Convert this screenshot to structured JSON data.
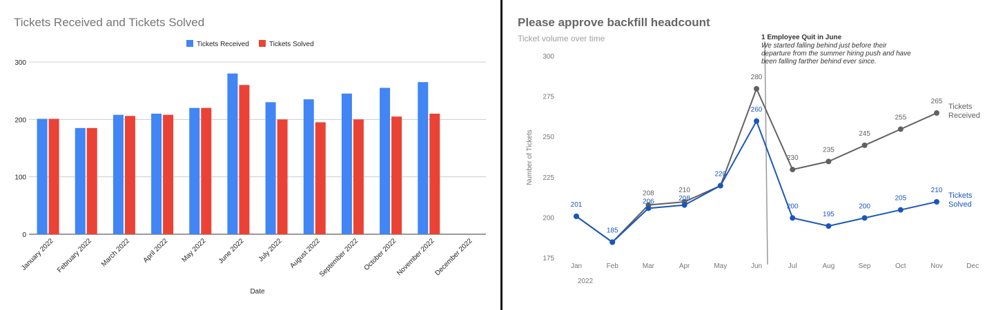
{
  "chart_data": [
    {
      "type": "bar",
      "title": "Tickets Received and Tickets Solved",
      "xlabel": "Date",
      "ylabel": "",
      "ylim": [
        0,
        300
      ],
      "yticks": [
        0,
        100,
        200,
        300
      ],
      "grid": true,
      "legend_position": "top",
      "categories": [
        "January 2022",
        "February 2022",
        "March 2022",
        "April 2022",
        "May 2022",
        "June 2022",
        "July 2022",
        "August 2022",
        "September 2022",
        "October 2022",
        "November 2022",
        "December 2022"
      ],
      "series": [
        {
          "name": "Tickets Received",
          "color": "#4285f4",
          "values": [
            201,
            185,
            208,
            210,
            220,
            280,
            230,
            235,
            245,
            255,
            265,
            null
          ]
        },
        {
          "name": "Tickets Solved",
          "color": "#ea4335",
          "values": [
            201,
            185,
            206,
            208,
            220,
            260,
            200,
            195,
            200,
            205,
            210,
            null
          ]
        }
      ]
    },
    {
      "type": "line",
      "title": "Please approve backfill headcount",
      "subtitle": "Ticket volume over time",
      "xlabel": "",
      "ylabel": "Number of Tickets",
      "ylim": [
        175,
        300
      ],
      "yticks": [
        175,
        200,
        225,
        250,
        275,
        300
      ],
      "grid": false,
      "categories": [
        "Jan",
        "Feb",
        "Mar",
        "Apr",
        "May",
        "Jun",
        "Jul",
        "Aug",
        "Sep",
        "Oct",
        "Nov",
        "Dec"
      ],
      "year_label": "2022",
      "series": [
        {
          "name": "Tickets Received",
          "name_lines": [
            "Tickets",
            "Received"
          ],
          "color": "#616161",
          "values": [
            201,
            185,
            208,
            210,
            220,
            280,
            230,
            235,
            245,
            255,
            265,
            null
          ]
        },
        {
          "name": "Tickets Solved",
          "name_lines": [
            "Tickets",
            "Solved"
          ],
          "color": "#1a56bb",
          "values": [
            201,
            185,
            206,
            208,
            220,
            260,
            200,
            195,
            200,
            205,
            210,
            null
          ]
        }
      ],
      "annotation": {
        "title": "1 Employee Quit in June",
        "lines": [
          "We started falling behind just before their",
          "departure from the summer hiring push and have",
          "been falling farther behind ever since."
        ]
      }
    }
  ]
}
